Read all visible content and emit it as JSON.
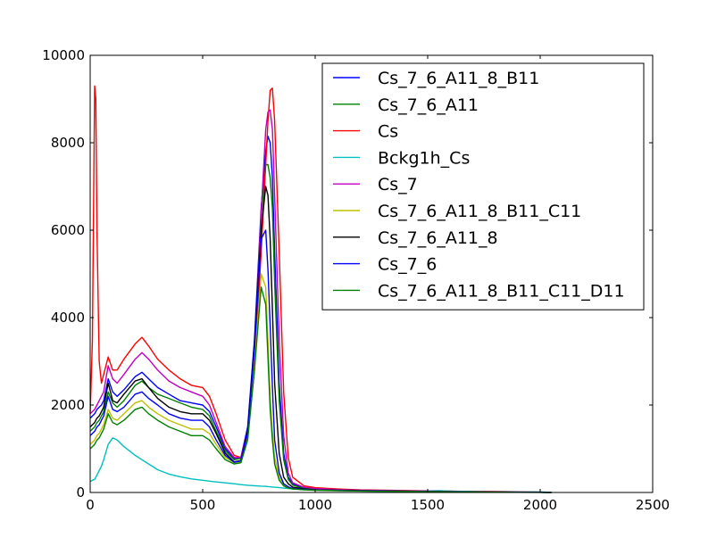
{
  "chart_data": {
    "type": "line",
    "title": "",
    "xlabel": "",
    "ylabel": "",
    "xlim": [
      0,
      2500
    ],
    "ylim": [
      0,
      10000
    ],
    "xticks": [
      "0",
      "500",
      "1000",
      "1500",
      "2000",
      "2500"
    ],
    "yticks": [
      "0",
      "2000",
      "4000",
      "6000",
      "8000",
      "10000"
    ],
    "grid": false,
    "legend_position": "top-right",
    "x": [
      0,
      10,
      20,
      25,
      30,
      40,
      50,
      60,
      80,
      100,
      120,
      150,
      200,
      230,
      260,
      300,
      350,
      400,
      450,
      500,
      530,
      560,
      600,
      640,
      670,
      700,
      730,
      760,
      780,
      790,
      800,
      810,
      820,
      840,
      860,
      880,
      900,
      950,
      1000,
      1100,
      1200,
      1400,
      1550,
      1600,
      1700,
      1800,
      2000,
      2050
    ],
    "series": [
      {
        "name": "Cs_7_6_A11_8_B11",
        "color": "#0000ff",
        "values": [
          1700,
          1750,
          1800,
          1850,
          1900,
          1950,
          2000,
          2100,
          2600,
          2300,
          2200,
          2350,
          2650,
          2750,
          2600,
          2400,
          2250,
          2100,
          2050,
          2000,
          1850,
          1500,
          1000,
          780,
          800,
          1500,
          3500,
          6500,
          7800,
          8150,
          8000,
          7200,
          5500,
          2500,
          900,
          350,
          200,
          100,
          80,
          60,
          45,
          35,
          25,
          20,
          15,
          10,
          5,
          0
        ]
      },
      {
        "name": "Cs_7_6_A11",
        "color": "#008000",
        "values": [
          1400,
          1450,
          1500,
          1550,
          1600,
          1650,
          1750,
          1850,
          2300,
          2050,
          1950,
          2100,
          2450,
          2550,
          2400,
          2250,
          2150,
          2050,
          1950,
          1900,
          1750,
          1400,
          950,
          750,
          780,
          1400,
          3300,
          6300,
          7500,
          7500,
          7200,
          6500,
          4800,
          2100,
          750,
          300,
          170,
          90,
          70,
          55,
          40,
          30,
          22,
          18,
          14,
          10,
          5,
          0
        ]
      },
      {
        "name": "Cs",
        "color": "#ff0000",
        "values": [
          1800,
          3500,
          9300,
          9000,
          6000,
          3000,
          2500,
          2700,
          3100,
          2800,
          2800,
          3050,
          3400,
          3550,
          3350,
          3050,
          2800,
          2600,
          2450,
          2400,
          2200,
          1800,
          1200,
          850,
          800,
          1300,
          2800,
          5500,
          7500,
          8500,
          9200,
          9250,
          8500,
          5500,
          2300,
          800,
          350,
          150,
          110,
          80,
          60,
          45,
          35,
          30,
          25,
          20,
          10,
          0
        ]
      },
      {
        "name": "Bckg1h_Cs",
        "color": "#00bfbf",
        "values": [
          250,
          280,
          300,
          350,
          400,
          500,
          600,
          750,
          1100,
          1250,
          1200,
          1050,
          850,
          750,
          650,
          520,
          420,
          360,
          310,
          280,
          260,
          240,
          220,
          200,
          180,
          165,
          155,
          145,
          140,
          135,
          130,
          125,
          120,
          110,
          100,
          90,
          80,
          70,
          60,
          45,
          35,
          25,
          40,
          30,
          20,
          15,
          10,
          5
        ]
      },
      {
        "name": "Cs_7",
        "color": "#bf00bf",
        "values": [
          1800,
          1850,
          1900,
          1950,
          2000,
          2100,
          2200,
          2300,
          2900,
          2600,
          2500,
          2700,
          3050,
          3200,
          3050,
          2800,
          2550,
          2400,
          2300,
          2200,
          2000,
          1600,
          1050,
          800,
          800,
          1400,
          3200,
          6400,
          8300,
          8700,
          8750,
          8300,
          6800,
          3500,
          1300,
          450,
          220,
          120,
          90,
          65,
          50,
          38,
          28,
          22,
          17,
          12,
          6,
          0
        ]
      },
      {
        "name": "Cs_7_6_A11_8_B11_C11",
        "color": "#bfbf00",
        "values": [
          1100,
          1150,
          1200,
          1250,
          1300,
          1350,
          1450,
          1550,
          1900,
          1700,
          1650,
          1800,
          2050,
          2100,
          1950,
          1800,
          1650,
          1550,
          1450,
          1450,
          1350,
          1100,
          800,
          680,
          700,
          1250,
          2900,
          5000,
          4700,
          3500,
          2200,
          1400,
          800,
          350,
          180,
          120,
          90,
          70,
          55,
          45,
          35,
          28,
          20,
          16,
          12,
          8,
          4,
          0
        ]
      },
      {
        "name": "Cs_7_6_A11_8",
        "color": "#000000",
        "values": [
          1500,
          1550,
          1600,
          1650,
          1700,
          1750,
          1850,
          1950,
          2500,
          2100,
          2050,
          2250,
          2550,
          2600,
          2400,
          2150,
          1950,
          1850,
          1800,
          1800,
          1650,
          1350,
          900,
          700,
          730,
          1400,
          3400,
          6000,
          7000,
          6800,
          5800,
          4200,
          2500,
          900,
          350,
          200,
          120,
          80,
          60,
          50,
          40,
          30,
          22,
          18,
          14,
          10,
          5,
          0
        ]
      },
      {
        "name": "Cs_7_6",
        "color": "#0000ff",
        "values": [
          1300,
          1350,
          1400,
          1450,
          1500,
          1550,
          1650,
          1750,
          2200,
          1900,
          1850,
          1950,
          2250,
          2300,
          2150,
          2000,
          1800,
          1700,
          1650,
          1650,
          1500,
          1200,
          850,
          690,
          720,
          1350,
          3300,
          5800,
          6000,
          5100,
          3800,
          2400,
          1200,
          450,
          200,
          130,
          90,
          70,
          55,
          45,
          35,
          28,
          20,
          16,
          12,
          8,
          4,
          0
        ]
      },
      {
        "name": "Cs_7_6_A11_8_B11_C11_D11",
        "color": "#008000",
        "values": [
          1000,
          1050,
          1100,
          1150,
          1200,
          1250,
          1350,
          1450,
          1800,
          1600,
          1550,
          1650,
          1900,
          1950,
          1800,
          1650,
          1500,
          1400,
          1300,
          1300,
          1200,
          1000,
          750,
          650,
          680,
          1200,
          2800,
          4700,
          4300,
          3100,
          1900,
          1200,
          650,
          280,
          150,
          100,
          80,
          60,
          50,
          40,
          32,
          25,
          18,
          14,
          10,
          7,
          3,
          0
        ]
      }
    ]
  }
}
